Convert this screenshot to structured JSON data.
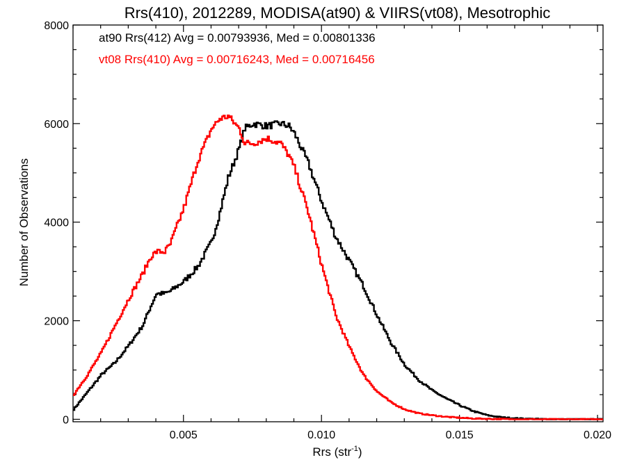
{
  "chart_data": {
    "type": "line",
    "title": "Rrs(410), 2012289, MODISA(at90) & VIIRS(vt08), Mesotrophic",
    "xlabel": "Rrs (str",
    "xlabel_sup": "-1",
    "xlabel_end": ")",
    "ylabel": "Number of Observations",
    "xlim": [
      0.001,
      0.0202
    ],
    "ylim": [
      -50,
      8000
    ],
    "xticks": [
      0.005,
      0.01,
      0.015,
      0.02
    ],
    "xtick_labels": [
      "0.005",
      "0.010",
      "0.015",
      "0.020"
    ],
    "yticks": [
      0,
      2000,
      4000,
      6000,
      8000
    ],
    "ytick_labels": [
      "0",
      "2000",
      "4000",
      "6000",
      "8000"
    ],
    "grid": false,
    "annotations": [
      {
        "text": "at90 Rrs(412) Avg = 0.00793936, Med = 0.00801336",
        "color": "#000000"
      },
      {
        "text": "vt08 Rrs(410) Avg = 0.00716243, Med = 0.00716456",
        "color": "#ff0000"
      }
    ],
    "series": [
      {
        "name": "at90 Rrs(412)",
        "color": "#000000",
        "step": true,
        "x": [
          0.001,
          0.0015,
          0.002,
          0.0025,
          0.003,
          0.0035,
          0.0038,
          0.004,
          0.0043,
          0.0045,
          0.005,
          0.0055,
          0.006,
          0.0063,
          0.0066,
          0.007,
          0.0072,
          0.0075,
          0.008,
          0.0085,
          0.0088,
          0.009,
          0.0095,
          0.01,
          0.0105,
          0.011,
          0.0115,
          0.012,
          0.0125,
          0.013,
          0.0135,
          0.014,
          0.0145,
          0.015,
          0.0155,
          0.016,
          0.0165,
          0.017,
          0.0175,
          0.018,
          0.0185,
          0.019,
          0.0195,
          0.0202
        ],
        "y": [
          200,
          550,
          900,
          1150,
          1500,
          1900,
          2300,
          2550,
          2550,
          2600,
          2800,
          3100,
          3600,
          4200,
          4900,
          5500,
          5900,
          6000,
          5950,
          6000,
          5950,
          5800,
          5200,
          4400,
          3700,
          3200,
          2700,
          2100,
          1550,
          1100,
          800,
          580,
          420,
          280,
          160,
          80,
          40,
          20,
          10,
          5,
          0,
          0,
          0,
          0
        ]
      },
      {
        "name": "vt08 Rrs(410)",
        "color": "#ff0000",
        "step": true,
        "x": [
          0.001,
          0.0015,
          0.002,
          0.0025,
          0.003,
          0.0035,
          0.0038,
          0.004,
          0.0043,
          0.0045,
          0.005,
          0.0055,
          0.006,
          0.0063,
          0.0066,
          0.007,
          0.0072,
          0.0075,
          0.008,
          0.0085,
          0.0088,
          0.009,
          0.0095,
          0.01,
          0.0105,
          0.011,
          0.0115,
          0.012,
          0.0125,
          0.013,
          0.0135,
          0.014,
          0.0145,
          0.015,
          0.0155,
          0.016,
          0.0165,
          0.017,
          0.0175,
          0.018,
          0.0185,
          0.019,
          0.0195,
          0.0202
        ],
        "y": [
          500,
          900,
          1350,
          1900,
          2450,
          2950,
          3300,
          3400,
          3400,
          3550,
          4300,
          5250,
          5900,
          6100,
          6150,
          5900,
          5600,
          5600,
          5700,
          5600,
          5350,
          5100,
          4200,
          3100,
          2100,
          1450,
          900,
          560,
          340,
          200,
          120,
          80,
          50,
          30,
          15,
          10,
          5,
          0,
          0,
          0,
          0,
          0,
          0,
          0
        ]
      }
    ]
  }
}
